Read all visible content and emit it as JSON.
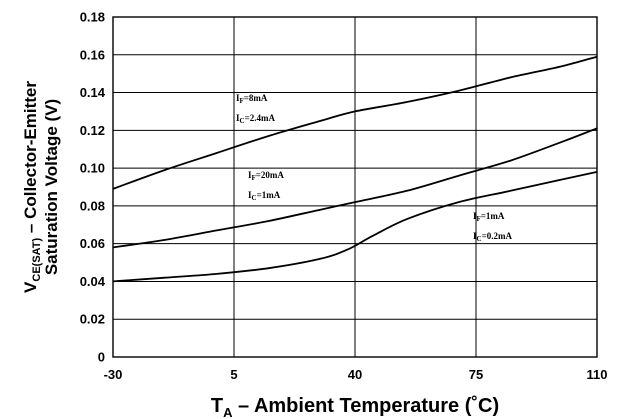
{
  "chart_data": {
    "type": "line",
    "title": "",
    "xlabel": {
      "main": "T",
      "sub": "A",
      "rest": " – Ambient Temperature  (˚C)"
    },
    "ylabel": {
      "line1": {
        "main": "V",
        "sub": "CE(SAT)",
        "rest": " – Collector-Emitter"
      },
      "line2": "Saturation Voltage  (V)"
    },
    "x_categories": [
      "-30",
      "5",
      "40",
      "75",
      "110"
    ],
    "x_range": [
      -30,
      110
    ],
    "y_ticks": [
      "0",
      "0.02",
      "0.04",
      "0.06",
      "0.08",
      "0.10",
      "0.12",
      "0.14",
      "0.16",
      "0.18"
    ],
    "ylim": [
      0,
      0.18
    ],
    "grid": true,
    "series": [
      {
        "annotation": [
          {
            "main": "I",
            "sub": "F",
            "rest": "=8mA"
          },
          {
            "main": "I",
            "sub": "C",
            "rest": "=2.4mA"
          }
        ],
        "points": [
          [
            -30,
            0.089
          ],
          [
            -15,
            0.099
          ],
          [
            0,
            0.108
          ],
          [
            15,
            0.117
          ],
          [
            30,
            0.125
          ],
          [
            40,
            0.13
          ],
          [
            55,
            0.135
          ],
          [
            70,
            0.141
          ],
          [
            85,
            0.148
          ],
          [
            100,
            0.154
          ],
          [
            110,
            0.159
          ]
        ]
      },
      {
        "annotation": [
          {
            "main": "I",
            "sub": "F",
            "rest": "=20mA"
          },
          {
            "main": "I",
            "sub": "C",
            "rest": "=1mA"
          }
        ],
        "points": [
          [
            -30,
            0.058
          ],
          [
            -15,
            0.062
          ],
          [
            0,
            0.067
          ],
          [
            15,
            0.072
          ],
          [
            30,
            0.078
          ],
          [
            40,
            0.082
          ],
          [
            55,
            0.088
          ],
          [
            70,
            0.096
          ],
          [
            85,
            0.104
          ],
          [
            100,
            0.114
          ],
          [
            110,
            0.121
          ]
        ]
      },
      {
        "annotation": [
          {
            "main": "I",
            "sub": "F",
            "rest": "=1mA"
          },
          {
            "main": "I",
            "sub": "C",
            "rest": "=0.2mA"
          }
        ],
        "points": [
          [
            -30,
            0.04
          ],
          [
            -15,
            0.042
          ],
          [
            0,
            0.044
          ],
          [
            15,
            0.047
          ],
          [
            30,
            0.052
          ],
          [
            38,
            0.057
          ],
          [
            45,
            0.064
          ],
          [
            55,
            0.073
          ],
          [
            70,
            0.082
          ],
          [
            85,
            0.088
          ],
          [
            100,
            0.094
          ],
          [
            110,
            0.098
          ]
        ]
      }
    ]
  }
}
